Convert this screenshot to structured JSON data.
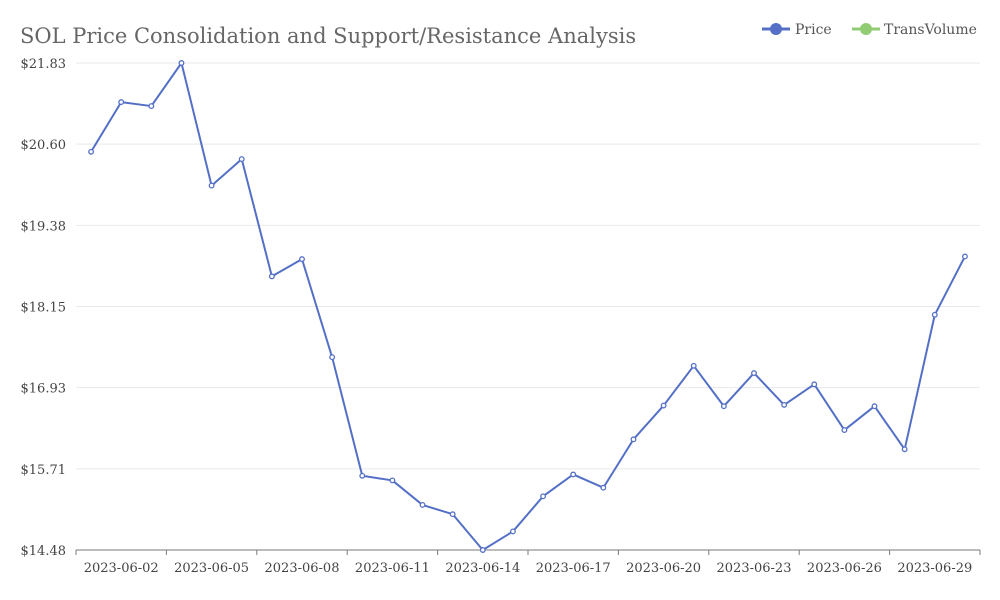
{
  "chart_data": {
    "type": "line",
    "title": "SOL Price Consolidation and Support/Resistance Analysis",
    "legend": {
      "placement": "top-right",
      "entries": [
        {
          "name": "Price",
          "color": "#5470c6",
          "icon": "circle-line-icon"
        },
        {
          "name": "TransVolume",
          "color": "#91cc75",
          "icon": "circle-line-icon"
        }
      ]
    },
    "x_tick_labels": [
      "2023-06-02",
      "2023-06-05",
      "2023-06-08",
      "2023-06-11",
      "2023-06-14",
      "2023-06-17",
      "2023-06-20",
      "2023-06-23",
      "2023-06-26",
      "2023-06-29"
    ],
    "y_tick_labels": [
      "$14.48",
      "$15.71",
      "$16.93",
      "$18.15",
      "$19.38",
      "$20.60",
      "$21.83"
    ],
    "ylim": [
      14.48,
      21.83
    ],
    "grid": true,
    "series": [
      {
        "name": "Price",
        "color": "#5470c6",
        "x": [
          "2023-06-01",
          "2023-06-02",
          "2023-06-03",
          "2023-06-04",
          "2023-06-05",
          "2023-06-06",
          "2023-06-07",
          "2023-06-08",
          "2023-06-09",
          "2023-06-10",
          "2023-06-11",
          "2023-06-12",
          "2023-06-13",
          "2023-06-14",
          "2023-06-15",
          "2023-06-16",
          "2023-06-17",
          "2023-06-18",
          "2023-06-19",
          "2023-06-20",
          "2023-06-21",
          "2023-06-22",
          "2023-06-23",
          "2023-06-24",
          "2023-06-25",
          "2023-06-26",
          "2023-06-27",
          "2023-06-28",
          "2023-06-29",
          "2023-06-30"
        ],
        "values": [
          20.49,
          21.24,
          21.18,
          21.83,
          19.98,
          20.38,
          18.61,
          18.87,
          17.39,
          15.6,
          15.53,
          15.16,
          15.02,
          14.48,
          14.76,
          15.29,
          15.62,
          15.42,
          16.15,
          16.66,
          17.26,
          16.65,
          17.15,
          16.67,
          16.98,
          16.29,
          16.65,
          16.0,
          18.03,
          18.91
        ]
      }
    ]
  }
}
